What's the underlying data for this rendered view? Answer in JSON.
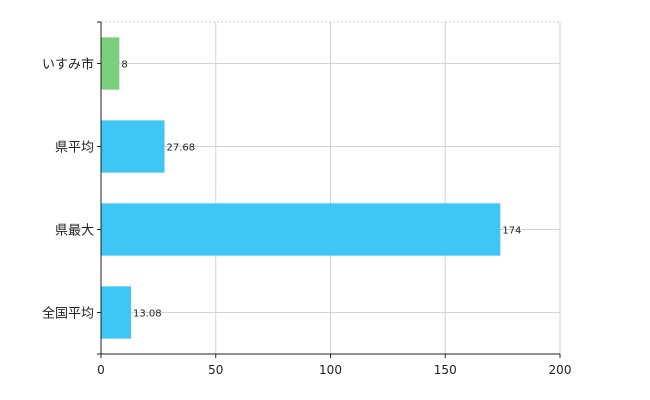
{
  "chart_data": {
    "type": "bar",
    "orientation": "horizontal",
    "categories": [
      "いすみ市",
      "県平均",
      "県最大",
      "全国平均"
    ],
    "values": [
      8,
      27.68,
      174,
      13.08
    ],
    "data_labels": [
      "8",
      "27.68",
      "174",
      "13.08"
    ],
    "colors": [
      "#7bd07e",
      "#3ec6f5",
      "#3ec6f5",
      "#3ec6f5"
    ],
    "xlim": [
      0,
      200
    ],
    "xticks": [
      0,
      50,
      100,
      150,
      200
    ],
    "grid": true,
    "title": "",
    "xlabel": "",
    "ylabel": ""
  }
}
